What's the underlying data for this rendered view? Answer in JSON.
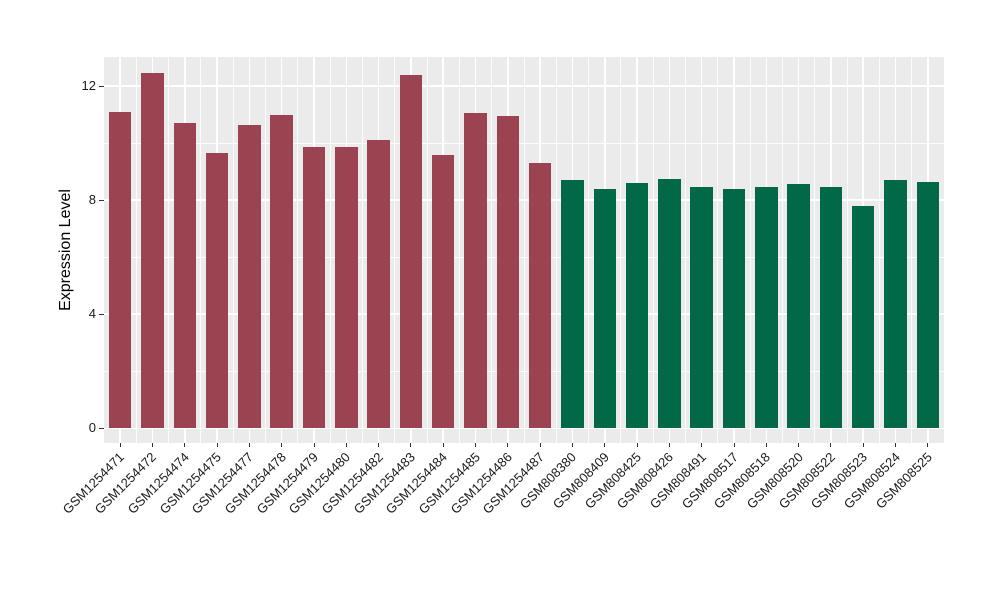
{
  "chart_data": {
    "type": "bar",
    "title": "",
    "xlabel": "",
    "ylabel": "Expression Level",
    "yticks": [
      0,
      4,
      8,
      12
    ],
    "yticks_minor": [
      2,
      6,
      10
    ],
    "ylim": [
      -0.52,
      13.03
    ],
    "grid": true,
    "legend_position": "none",
    "panel_bg": "#EBEBEB",
    "grid_color": "#FFFFFF",
    "axis_text_color": "#1A1A1A",
    "groups": [
      {
        "name": "GSM1254-series",
        "color": "#9C4351"
      },
      {
        "name": "GSM808-series",
        "color": "#026948"
      }
    ],
    "bars": [
      {
        "label": "GSM1254471",
        "value": 11.1,
        "group": 0
      },
      {
        "label": "GSM1254472",
        "value": 12.45,
        "group": 0
      },
      {
        "label": "GSM1254474",
        "value": 10.7,
        "group": 0
      },
      {
        "label": "GSM1254475",
        "value": 9.65,
        "group": 0
      },
      {
        "label": "GSM1254477",
        "value": 10.65,
        "group": 0
      },
      {
        "label": "GSM1254478",
        "value": 11.0,
        "group": 0
      },
      {
        "label": "GSM1254479",
        "value": 9.85,
        "group": 0
      },
      {
        "label": "GSM1254480",
        "value": 9.85,
        "group": 0
      },
      {
        "label": "GSM1254482",
        "value": 10.1,
        "group": 0
      },
      {
        "label": "GSM1254483",
        "value": 12.4,
        "group": 0
      },
      {
        "label": "GSM1254484",
        "value": 9.6,
        "group": 0
      },
      {
        "label": "GSM1254485",
        "value": 11.05,
        "group": 0
      },
      {
        "label": "GSM1254486",
        "value": 10.95,
        "group": 0
      },
      {
        "label": "GSM1254487",
        "value": 9.3,
        "group": 0
      },
      {
        "label": "GSM808380",
        "value": 8.7,
        "group": 1
      },
      {
        "label": "GSM808409",
        "value": 8.4,
        "group": 1
      },
      {
        "label": "GSM808425",
        "value": 8.6,
        "group": 1
      },
      {
        "label": "GSM808426",
        "value": 8.75,
        "group": 1
      },
      {
        "label": "GSM808491",
        "value": 8.45,
        "group": 1
      },
      {
        "label": "GSM808517",
        "value": 8.4,
        "group": 1
      },
      {
        "label": "GSM808518",
        "value": 8.45,
        "group": 1
      },
      {
        "label": "GSM808520",
        "value": 8.55,
        "group": 1
      },
      {
        "label": "GSM808522",
        "value": 8.45,
        "group": 1
      },
      {
        "label": "GSM808523",
        "value": 7.8,
        "group": 1
      },
      {
        "label": "GSM808524",
        "value": 8.7,
        "group": 1
      },
      {
        "label": "GSM808525",
        "value": 8.65,
        "group": 1
      }
    ]
  }
}
